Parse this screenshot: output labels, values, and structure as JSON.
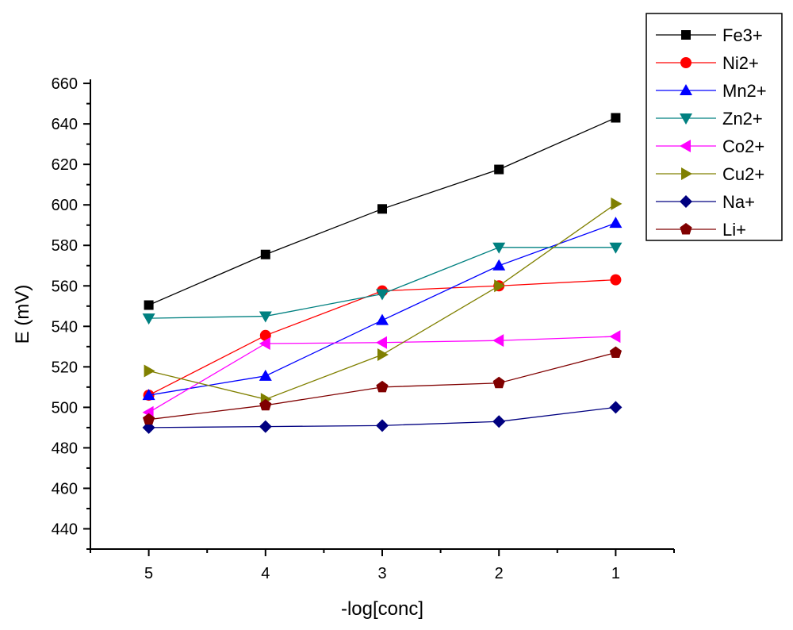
{
  "chart_data": {
    "type": "line",
    "title": "",
    "xlabel": "-log[conc]",
    "ylabel": "E (mV)",
    "x": [
      5,
      4,
      3,
      2,
      1
    ],
    "x_tick_labels": [
      "5",
      "4",
      "3",
      "2",
      "1"
    ],
    "y_tick_labels": [
      "440",
      "460",
      "480",
      "500",
      "520",
      "540",
      "560",
      "580",
      "600",
      "620",
      "640",
      "660"
    ],
    "xlim": [
      5.5,
      0.5
    ],
    "ylim": [
      430,
      662
    ],
    "grid": false,
    "legend_position": "top-right",
    "series": [
      {
        "name": "Fe3+",
        "values": [
          550.5,
          575.5,
          598,
          617.5,
          643
        ],
        "color": "#000000",
        "marker": "square"
      },
      {
        "name": "Ni2+",
        "values": [
          506,
          535.5,
          557.5,
          560,
          563
        ],
        "color": "#ff0000",
        "marker": "circle"
      },
      {
        "name": "Mn2+",
        "values": [
          506,
          515.5,
          543,
          570,
          591
        ],
        "color": "#0000ff",
        "marker": "triangle-up"
      },
      {
        "name": "Zn2+",
        "values": [
          544,
          545,
          556,
          579,
          579
        ],
        "color": "#008080",
        "marker": "triangle-down"
      },
      {
        "name": "Co2+",
        "values": [
          497.5,
          531.5,
          532,
          533,
          535
        ],
        "color": "#ff00ff",
        "marker": "triangle-left"
      },
      {
        "name": "Cu2+",
        "values": [
          518,
          504,
          526,
          560,
          600.5
        ],
        "color": "#808000",
        "marker": "triangle-right"
      },
      {
        "name": "Na+",
        "values": [
          490,
          490.5,
          491,
          493,
          500
        ],
        "color": "#000080",
        "marker": "diamond"
      },
      {
        "name": "Li+",
        "values": [
          494,
          501,
          510,
          512,
          527
        ],
        "color": "#800000",
        "marker": "pentagon"
      }
    ]
  }
}
